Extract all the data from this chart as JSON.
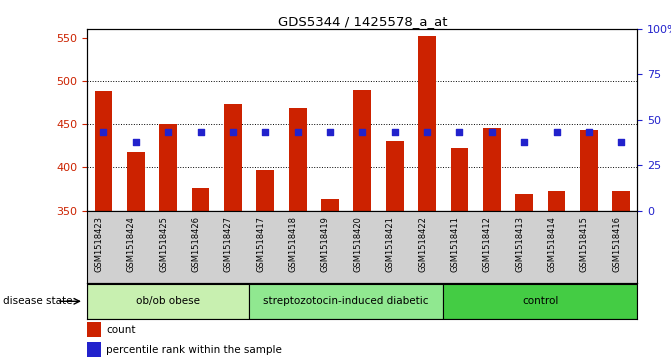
{
  "title": "GDS5344 / 1425578_a_at",
  "samples": [
    "GSM1518423",
    "GSM1518424",
    "GSM1518425",
    "GSM1518426",
    "GSM1518427",
    "GSM1518417",
    "GSM1518418",
    "GSM1518419",
    "GSM1518420",
    "GSM1518421",
    "GSM1518422",
    "GSM1518411",
    "GSM1518412",
    "GSM1518413",
    "GSM1518414",
    "GSM1518415",
    "GSM1518416"
  ],
  "counts": [
    488,
    418,
    450,
    376,
    473,
    397,
    469,
    363,
    489,
    430,
    552,
    422,
    445,
    369,
    373,
    443,
    373
  ],
  "percentiles": [
    43,
    38,
    43,
    43,
    43,
    43,
    43,
    43,
    43,
    43,
    43,
    43,
    43,
    38,
    43,
    43,
    38
  ],
  "groups": [
    {
      "label": "ob/ob obese",
      "start": 0,
      "end": 5,
      "color": "#c8f0b0"
    },
    {
      "label": "streptozotocin-induced diabetic",
      "start": 5,
      "end": 11,
      "color": "#90e890"
    },
    {
      "label": "control",
      "start": 11,
      "end": 17,
      "color": "#44cc44"
    }
  ],
  "bar_color": "#cc2200",
  "dot_color": "#2222cc",
  "bar_bottom": 350,
  "ylim_left": [
    350,
    560
  ],
  "ylim_right": [
    0,
    100
  ],
  "yticks_left": [
    350,
    400,
    450,
    500,
    550
  ],
  "yticks_right": [
    0,
    25,
    50,
    75,
    100
  ],
  "bg_color": "#d0d0d0",
  "plot_bg": "#ffffff",
  "label_color_left": "#cc2200",
  "label_color_right": "#2222cc",
  "disease_state_label": "disease state",
  "legend_count_label": "count",
  "legend_pct_label": "percentile rank within the sample",
  "gridline_values": [
    400,
    450,
    500
  ]
}
